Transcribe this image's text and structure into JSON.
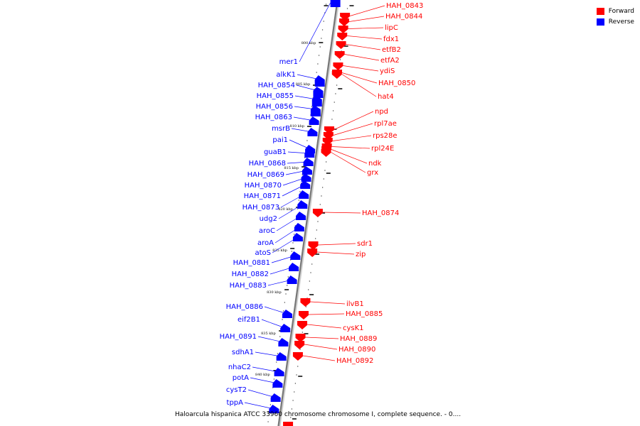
{
  "legend": {
    "forward": {
      "label": "Forward",
      "color": "#ff0000"
    },
    "reverse": {
      "label": "Reverse",
      "color": "#0000ff"
    }
  },
  "caption": "Haloarcula hispanica ATCC 33960 chromosome chromosome I, complete sequence. - 0....",
  "ticks": [
    "800 kbp",
    "805 kbp",
    "810 kbp",
    "815 kbp",
    "820 kbp",
    "825 kbp",
    "830 kbp",
    "835 kbp",
    "840 kbp"
  ],
  "forward_genes": [
    "HAH_0843",
    "HAH_0844",
    "lipC",
    "fdx1",
    "etfB2",
    "etfA2",
    "ydiS",
    "HAH_0850",
    "hat4",
    "npd",
    "rpl7ae",
    "rps28e",
    "rpl24E",
    "ndk",
    "grx",
    "HAH_0874",
    "sdr1",
    "zip",
    "ilvB1",
    "HAH_0885",
    "cysK1",
    "HAH_0889",
    "HAH_0890",
    "HAH_0892"
  ],
  "reverse_genes": [
    "mer1",
    "alkK1",
    "HAH_0854",
    "HAH_0855",
    "HAH_0856",
    "HAH_0863",
    "msrB",
    "pai1",
    "guaB1",
    "HAH_0868",
    "HAH_0869",
    "HAH_0870",
    "HAH_0871",
    "HAH_0873",
    "udg2",
    "aroC",
    "aroA",
    "atoS",
    "HAH_0881",
    "HAH_0882",
    "HAH_0883",
    "HAH_0886",
    "eif2B1",
    "HAH_0891",
    "sdhA1",
    "nhaC2",
    "potA",
    "cysT2",
    "tppA"
  ]
}
